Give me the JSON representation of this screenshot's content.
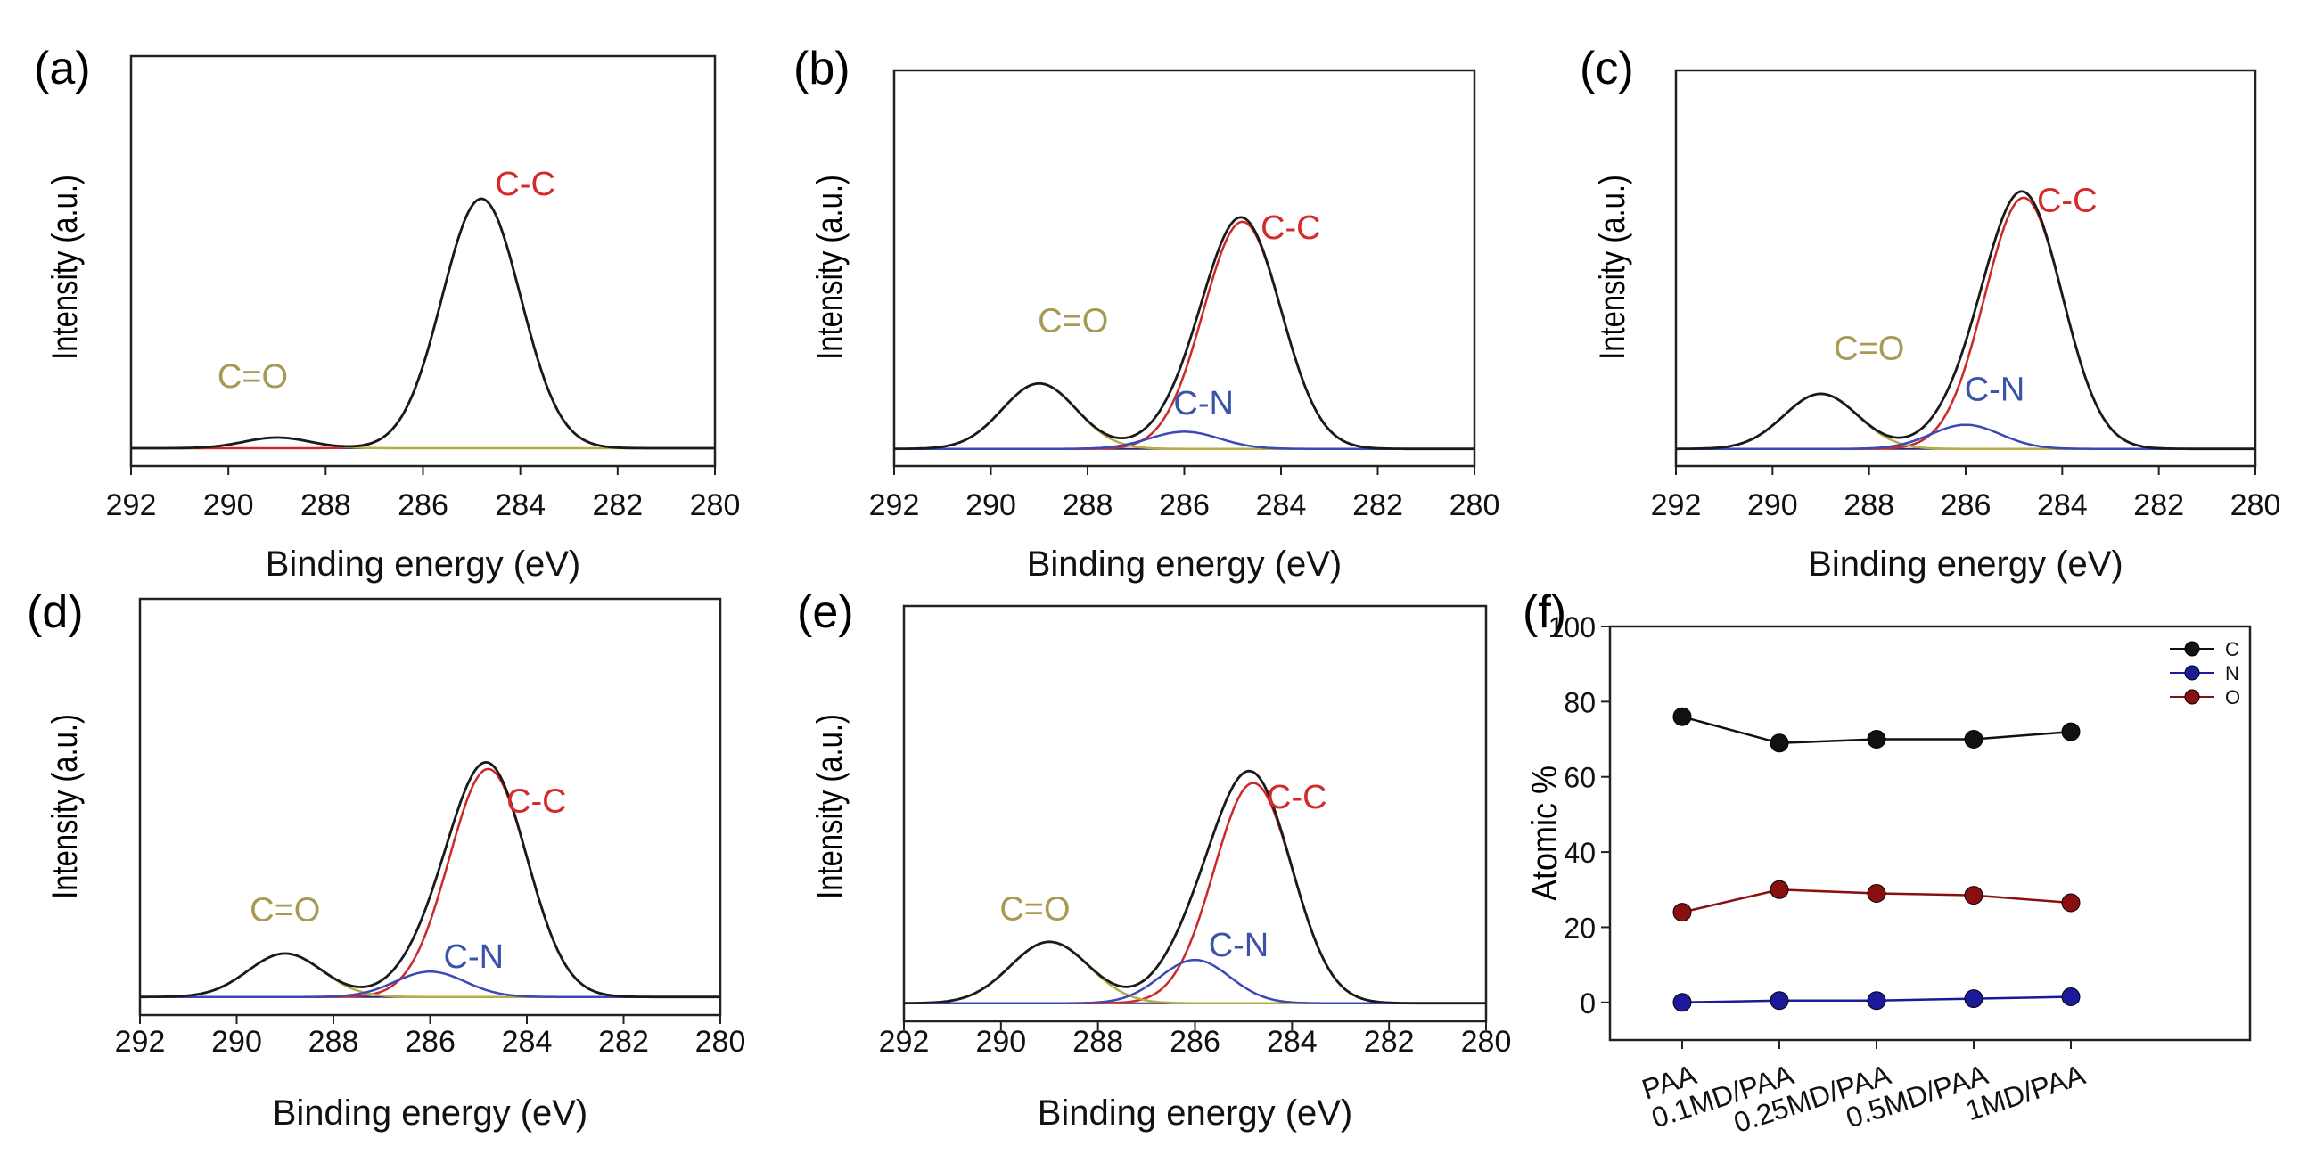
{
  "colors": {
    "envelope": "#1a1a1a",
    "cc": "#cc2a2a",
    "co": "#b5ad48",
    "cn": "#3a48b8",
    "baseline": "#2a2a6a",
    "label_cc": "#d42a2a",
    "label_co": "#a89a52",
    "label_cn": "#3a55a8",
    "marker_C": "#111111",
    "marker_N": "#1a1a9a",
    "marker_O": "#8a1010"
  },
  "chart_data": [
    {
      "panel": "(a)",
      "type": "line",
      "xlabel": "Binding energy (eV)",
      "ylabel": "Intensity (a.u.)",
      "xlim": [
        292,
        280
      ],
      "xticks": [
        "292",
        "290",
        "288",
        "286",
        "284",
        "282",
        "280"
      ],
      "ylim": [
        0,
        1.15
      ],
      "peaks": [
        {
          "name": "C-C",
          "center": 284.8,
          "height": 0.7,
          "fwhm": 1.9
        },
        {
          "name": "C=O",
          "center": 289.0,
          "height": 0.03,
          "fwhm": 1.6
        }
      ],
      "labels": [
        {
          "text": "C-C",
          "x": 283.9,
          "y": 0.76,
          "series": "cc"
        },
        {
          "text": "C=O",
          "x": 289.5,
          "y": 0.22,
          "series": "co"
        }
      ]
    },
    {
      "panel": "(b)",
      "type": "line",
      "xlabel": "Binding energy (eV)",
      "ylabel": "Intensity (a.u.)",
      "xlim": [
        292,
        280
      ],
      "xticks": [
        "292",
        "290",
        "288",
        "286",
        "284",
        "282",
        "280"
      ],
      "ylim": [
        0,
        1.15
      ],
      "peaks": [
        {
          "name": "C-C",
          "center": 284.8,
          "height": 0.66,
          "fwhm": 1.9
        },
        {
          "name": "C=O",
          "center": 289.0,
          "height": 0.19,
          "fwhm": 1.8
        },
        {
          "name": "C-N",
          "center": 286.0,
          "height": 0.05,
          "fwhm": 1.7
        }
      ],
      "labels": [
        {
          "text": "C-C",
          "x": 283.8,
          "y": 0.66,
          "series": "cc"
        },
        {
          "text": "C=O",
          "x": 288.3,
          "y": 0.39,
          "series": "co"
        },
        {
          "text": "C-N",
          "x": 285.6,
          "y": 0.15,
          "series": "cn"
        }
      ]
    },
    {
      "panel": "(c)",
      "type": "line",
      "xlabel": "Binding energy (eV)",
      "ylabel": "Intensity (a.u.)",
      "xlim": [
        292,
        280
      ],
      "xticks": [
        "292",
        "290",
        "288",
        "286",
        "284",
        "282",
        "280"
      ],
      "ylim": [
        0,
        1.15
      ],
      "peaks": [
        {
          "name": "C-C",
          "center": 284.8,
          "height": 0.73,
          "fwhm": 1.9
        },
        {
          "name": "C=O",
          "center": 289.0,
          "height": 0.16,
          "fwhm": 1.8
        },
        {
          "name": "C-N",
          "center": 286.0,
          "height": 0.07,
          "fwhm": 1.7
        }
      ],
      "labels": [
        {
          "text": "C-C",
          "x": 283.9,
          "y": 0.74,
          "series": "cc"
        },
        {
          "text": "C=O",
          "x": 288.0,
          "y": 0.31,
          "series": "co"
        },
        {
          "text": "C-N",
          "x": 285.4,
          "y": 0.19,
          "series": "cn"
        }
      ]
    },
    {
      "panel": "(d)",
      "type": "line",
      "xlabel": "Binding energy (eV)",
      "ylabel": "Intensity (a.u.)",
      "xlim": [
        292,
        280
      ],
      "xticks": [
        "292",
        "290",
        "288",
        "286",
        "284",
        "282",
        "280"
      ],
      "ylim": [
        0,
        1.15
      ],
      "peaks": [
        {
          "name": "C-C",
          "center": 284.8,
          "height": 0.63,
          "fwhm": 1.9
        },
        {
          "name": "C=O",
          "center": 289.0,
          "height": 0.12,
          "fwhm": 1.8
        },
        {
          "name": "C-N",
          "center": 286.0,
          "height": 0.07,
          "fwhm": 1.7
        }
      ],
      "labels": [
        {
          "text": "C-C",
          "x": 283.8,
          "y": 0.56,
          "series": "cc"
        },
        {
          "text": "C=O",
          "x": 289.0,
          "y": 0.26,
          "series": "co"
        },
        {
          "text": "C-N",
          "x": 285.1,
          "y": 0.13,
          "series": "cn"
        }
      ]
    },
    {
      "panel": "(e)",
      "type": "line",
      "xlabel": "Binding energy (eV)",
      "ylabel": "Intensity (a.u.)",
      "xlim": [
        292,
        280
      ],
      "xticks": [
        "292",
        "290",
        "288",
        "286",
        "284",
        "282",
        "280"
      ],
      "ylim": [
        0,
        1.15
      ],
      "peaks": [
        {
          "name": "C-C",
          "center": 284.8,
          "height": 0.61,
          "fwhm": 1.9
        },
        {
          "name": "C=O",
          "center": 289.0,
          "height": 0.17,
          "fwhm": 1.9
        },
        {
          "name": "C-N",
          "center": 286.0,
          "height": 0.12,
          "fwhm": 1.7
        }
      ],
      "labels": [
        {
          "text": "C-C",
          "x": 283.9,
          "y": 0.59,
          "series": "cc"
        },
        {
          "text": "C=O",
          "x": 289.3,
          "y": 0.28,
          "series": "co"
        },
        {
          "text": "C-N",
          "x": 285.1,
          "y": 0.18,
          "series": "cn"
        }
      ]
    },
    {
      "panel": "(f)",
      "type": "line",
      "ylabel": "Atomic %",
      "ylim": [
        -10,
        100
      ],
      "yticks": [
        0,
        20,
        40,
        60,
        80,
        100
      ],
      "categories": [
        "PAA",
        "0.1MD/PAA",
        "0.25MD/PAA",
        "0.5MD/PAA",
        "1MD/PAA"
      ],
      "series": [
        {
          "name": "C",
          "values": [
            76,
            69,
            70,
            70,
            72
          ]
        },
        {
          "name": "N",
          "values": [
            0,
            0.5,
            0.5,
            1,
            1.5
          ]
        },
        {
          "name": "O",
          "values": [
            24,
            30,
            29,
            28.5,
            26.5
          ]
        }
      ],
      "legend": "top-right"
    }
  ]
}
